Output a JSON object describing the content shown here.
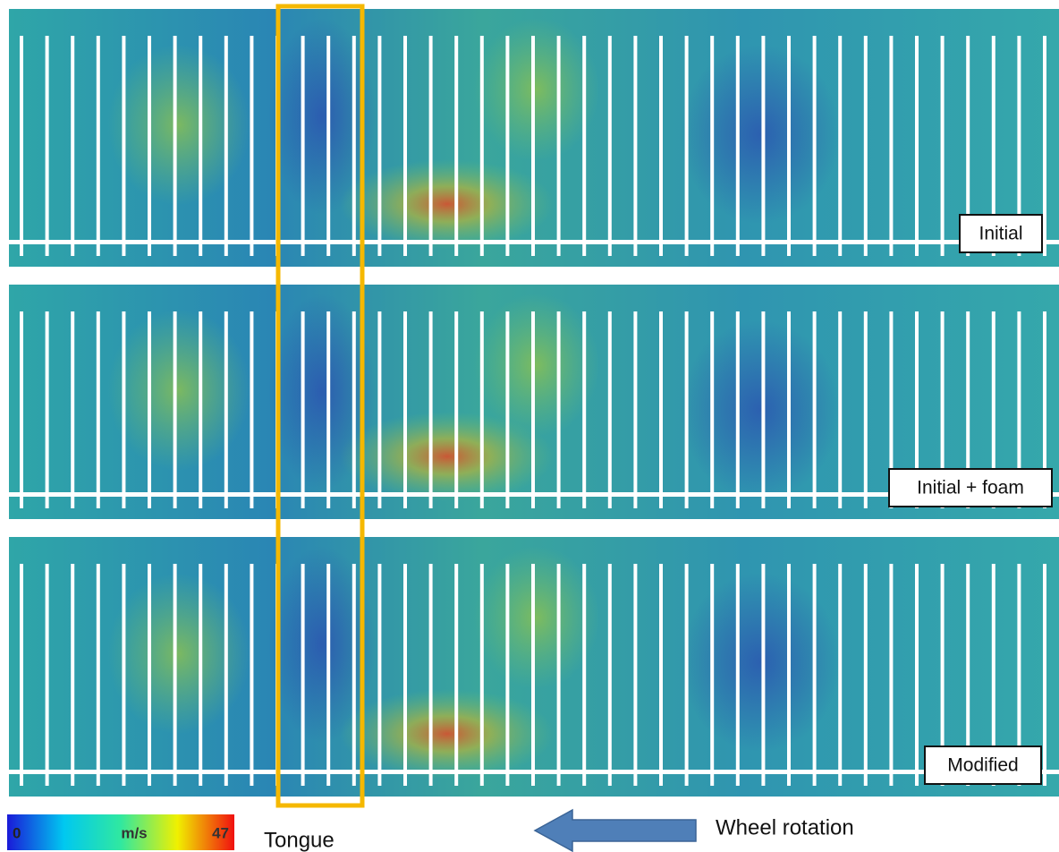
{
  "panels": [
    {
      "label": "Initial"
    },
    {
      "label": "Initial + foam"
    },
    {
      "label": "Modified"
    }
  ],
  "colorbar": {
    "min": 0,
    "unit": "m/s",
    "max": 47
  },
  "annotations": {
    "tongue": "Tongue",
    "rotation": "Wheel rotation"
  }
}
